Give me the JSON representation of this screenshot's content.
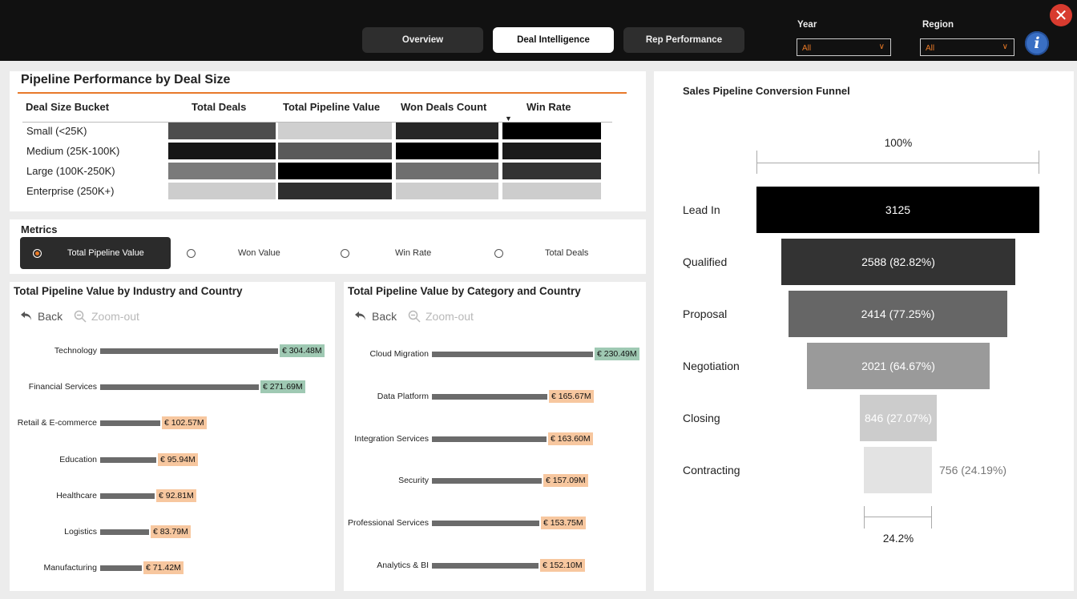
{
  "tabs": [
    {
      "label": "Overview",
      "active": false
    },
    {
      "label": "Deal Intelligence",
      "active": true
    },
    {
      "label": "Rep Performance",
      "active": false
    }
  ],
  "filters": {
    "year": {
      "label": "Year",
      "value": "All"
    },
    "region": {
      "label": "Region",
      "value": "All"
    }
  },
  "icons": {
    "info": "info-icon",
    "close": "close-icon"
  },
  "colors": {
    "accent": "#ea7a26",
    "topbar": "#111111",
    "green_tag": "#9fc9b3",
    "peach_tag": "#f7c79f",
    "info_blue": "#3a6fc4",
    "close_red": "#d83b2f"
  },
  "deal_size_matrix": {
    "title": "Pipeline Performance by Deal Size",
    "headers": [
      "Deal Size Bucket",
      "Total Deals",
      "Total Pipeline Value",
      "Won Deals Count",
      "Win Rate"
    ],
    "rows": [
      {
        "label": "Small (<25K)",
        "shades": [
          "#4d4d4d",
          "#cfcfcf",
          "#262626",
          "#000000"
        ]
      },
      {
        "label": "Medium (25K-100K)",
        "shades": [
          "#161616",
          "#5a5a5a",
          "#000000",
          "#1a1a1a"
        ]
      },
      {
        "label": "Large (100K-250K)",
        "shades": [
          "#7a7a7a",
          "#000000",
          "#6f6f6f",
          "#333333"
        ]
      },
      {
        "label": "Enterprise (250K+)",
        "shades": [
          "#cdcdcd",
          "#2f2f2f",
          "#cdcdcd",
          "#cdcdcd"
        ]
      }
    ]
  },
  "metrics": {
    "title": "Metrics",
    "options": [
      {
        "label": "Total Pipeline Value",
        "selected": true
      },
      {
        "label": "Won Value",
        "selected": false
      },
      {
        "label": "Win Rate",
        "selected": false
      },
      {
        "label": "Total Deals",
        "selected": false
      }
    ]
  },
  "industry_chart": {
    "title": "Total Pipeline Value by Industry and Country",
    "back_label": "Back",
    "zoom_label": "Zoom-out"
  },
  "category_chart": {
    "title": "Total Pipeline Value by Category and Country",
    "back_label": "Back",
    "zoom_label": "Zoom-out"
  },
  "funnel": {
    "title": "Sales Pipeline Conversion Funnel",
    "top_percent": "100%",
    "bottom_percent": "24.2%"
  },
  "chart_data": [
    {
      "type": "bar",
      "orientation": "horizontal",
      "title": "Total Pipeline Value by Industry and Country",
      "categories": [
        "Technology",
        "Financial Services",
        "Retail & E-commerce",
        "Education",
        "Healthcare",
        "Logistics",
        "Manufacturing"
      ],
      "values": [
        304.48,
        271.69,
        102.57,
        95.94,
        92.81,
        83.79,
        71.42
      ],
      "labels": [
        "€ 304.48M",
        "€ 271.69M",
        "€ 102.57M",
        "€ 95.94M",
        "€ 92.81M",
        "€ 83.79M",
        "€ 71.42M"
      ],
      "highlight": [
        true,
        true,
        false,
        false,
        false,
        false,
        false
      ]
    },
    {
      "type": "bar",
      "orientation": "horizontal",
      "title": "Total Pipeline Value by Category and Country",
      "categories": [
        "Cloud Migration",
        "Data Platform",
        "Integration Services",
        "Security",
        "Professional Services",
        "Analytics & BI"
      ],
      "values": [
        230.49,
        165.67,
        163.6,
        157.09,
        153.75,
        152.1
      ],
      "labels": [
        "€ 230.49M",
        "€ 165.67M",
        "€ 163.60M",
        "€ 157.09M",
        "€ 153.75M",
        "€ 152.10M"
      ],
      "highlight": [
        true,
        false,
        false,
        false,
        false,
        false
      ]
    },
    {
      "type": "funnel",
      "title": "Sales Pipeline Conversion Funnel",
      "categories": [
        "Lead In",
        "Qualified",
        "Proposal",
        "Negotiation",
        "Closing",
        "Contracting"
      ],
      "values": [
        3125,
        2588,
        2414,
        2021,
        846,
        756
      ],
      "labels": [
        "3125",
        "2588 (82.82%)",
        "2414 (77.25%)",
        "2021 (64.67%)",
        "846 (27.07%)",
        "756 (24.19%)"
      ],
      "colors": [
        "#000000",
        "#333333",
        "#666666",
        "#9a9a9a",
        "#cccccc",
        "#e3e3e3"
      ]
    }
  ]
}
